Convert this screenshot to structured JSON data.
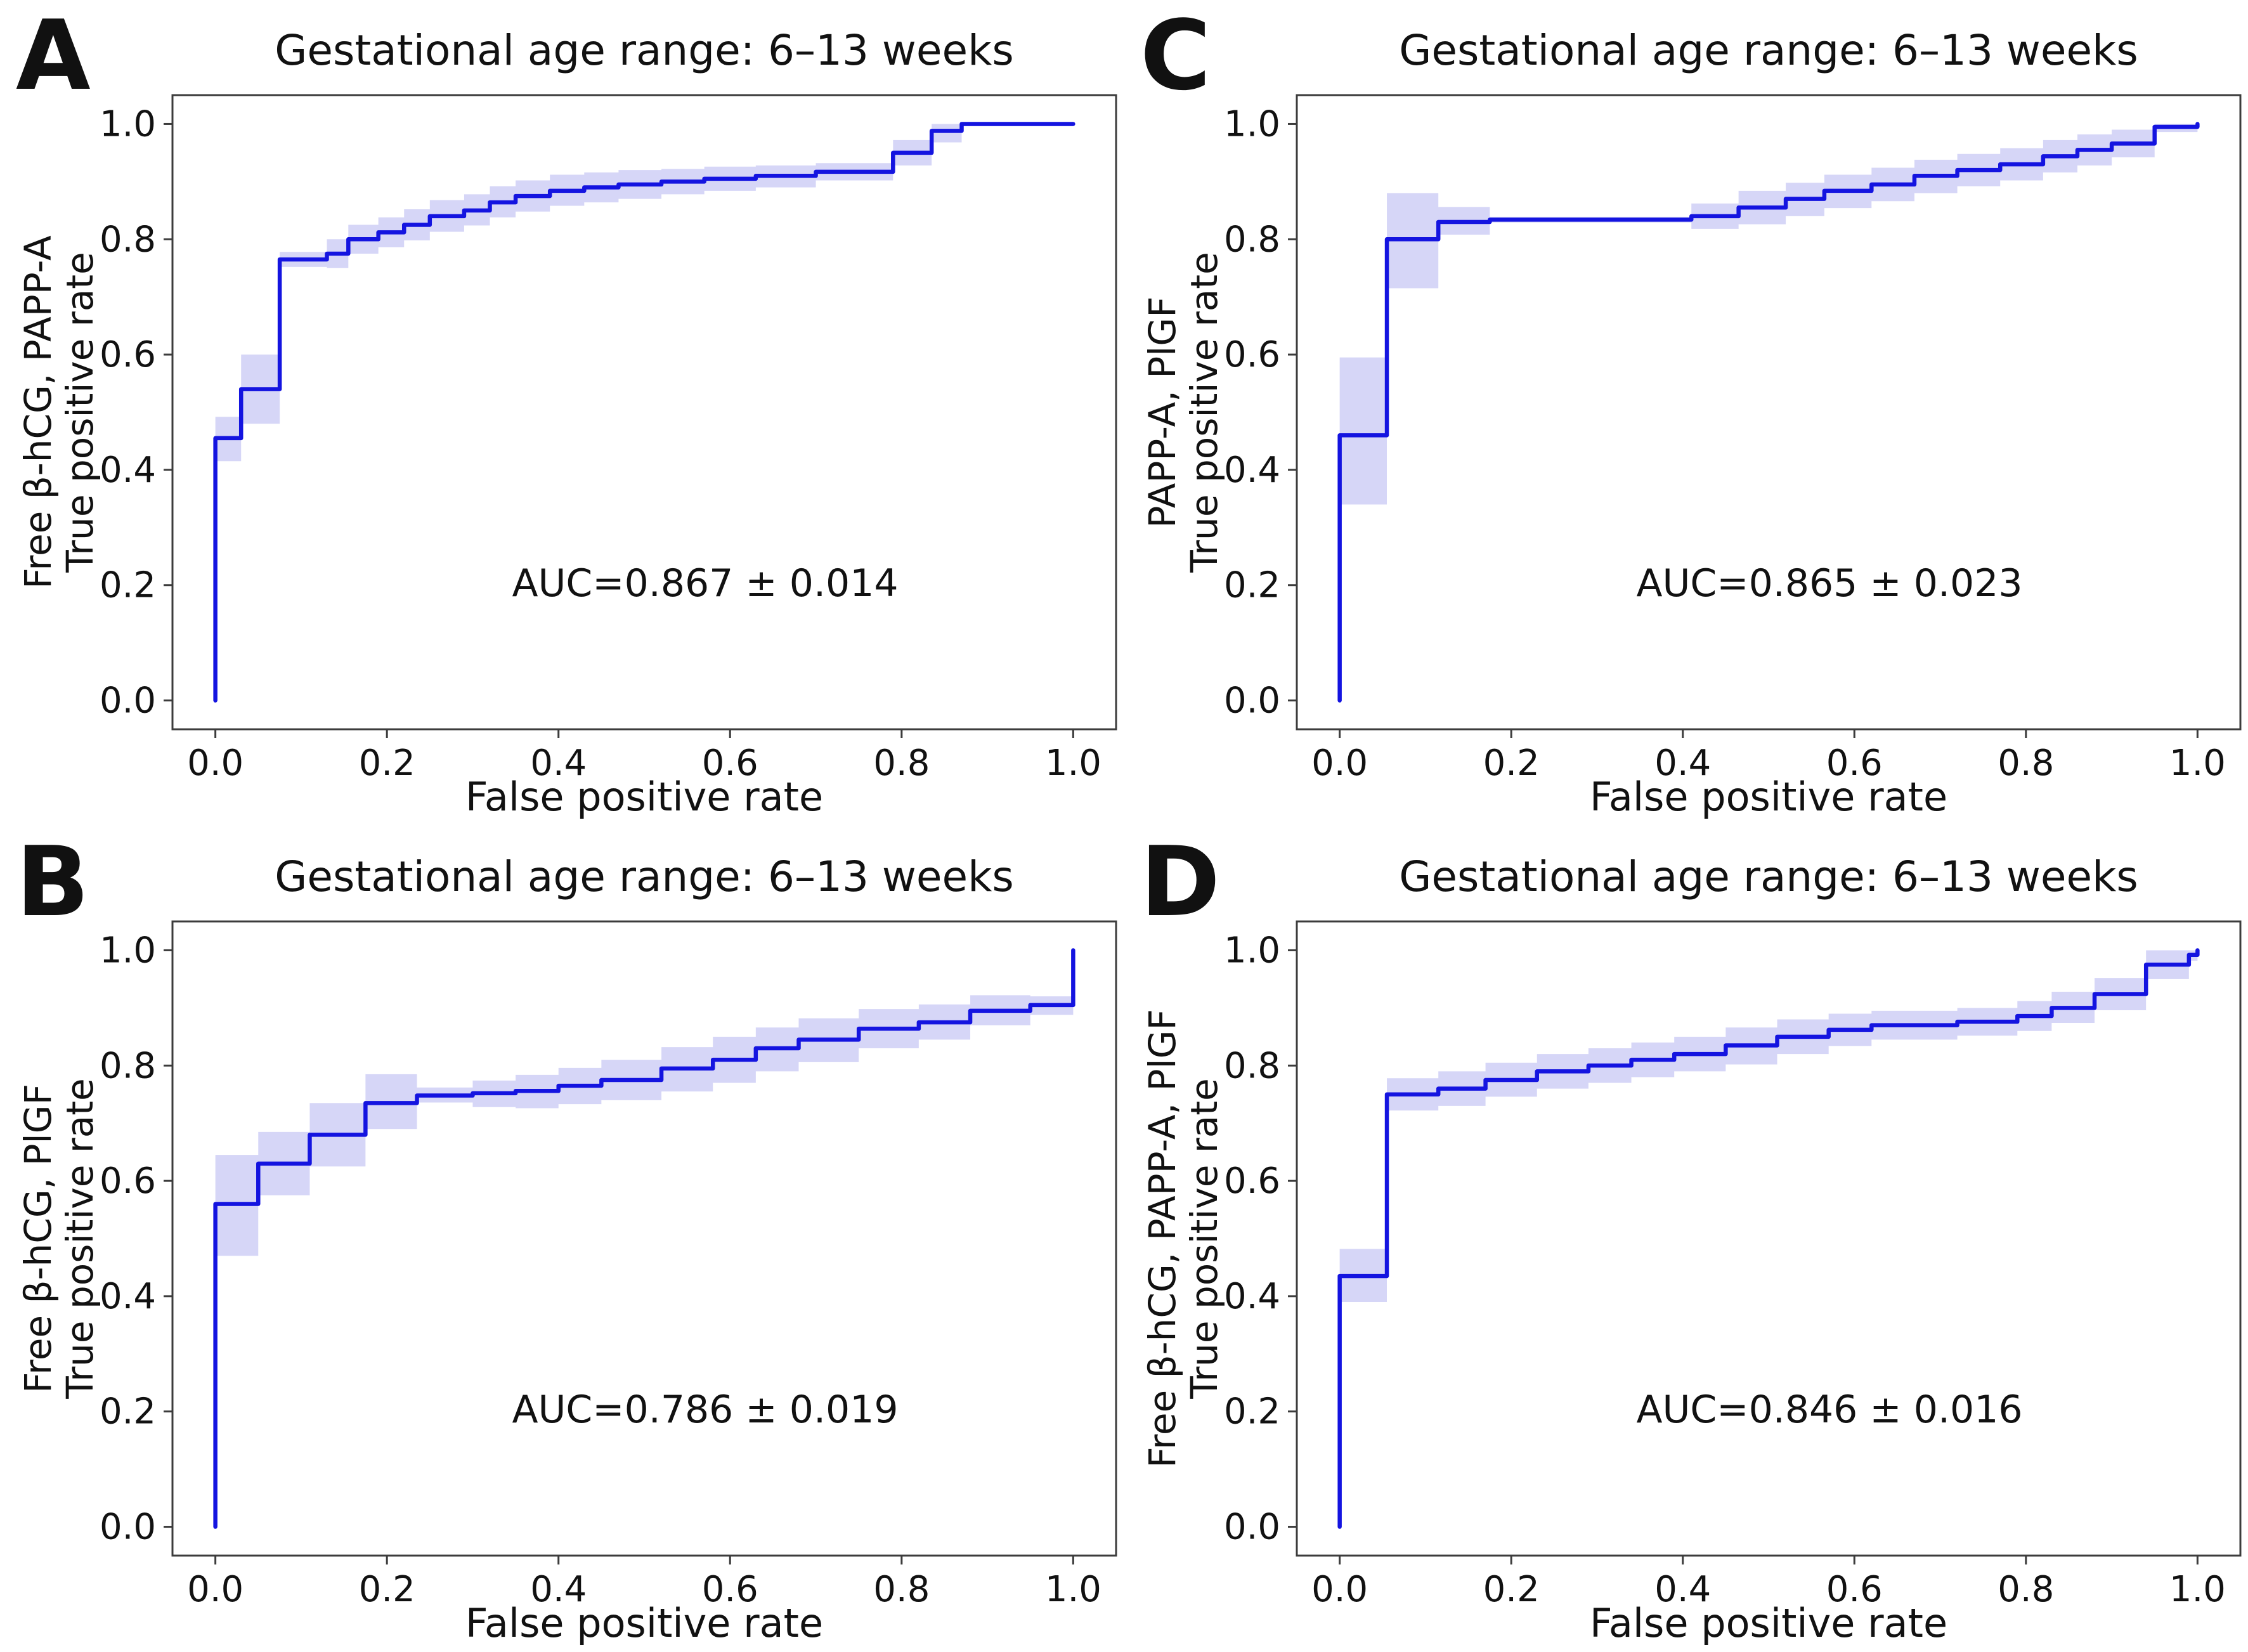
{
  "figure": {
    "background": "#ffffff",
    "line_color": "#1414e0",
    "band_color": "#6b6be4",
    "band_opacity": 0.28,
    "spine_color": "#3c3c3c",
    "text_color": "#111111"
  },
  "axes": {
    "tick_values": [
      0.0,
      0.2,
      0.4,
      0.6,
      0.8,
      1.0
    ],
    "tick_labels": [
      "0.0",
      "0.2",
      "0.4",
      "0.6",
      "0.8",
      "1.0"
    ],
    "xlim": [
      -0.05,
      1.05
    ],
    "ylim": [
      -0.05,
      1.05
    ],
    "grid": false
  },
  "chart_data": {
    "type": "line",
    "subtype": "ROC step curves with shaded confidence bands, 2x2 subplot grid",
    "legend": "none",
    "panels": [
      {
        "letter": "A",
        "grid_position": "top-left",
        "title": "Gestational age range: 6–13 weeks",
        "ylabel_markers": "Free β-hCG, PAPP-A",
        "ylabel_axis": "True positive rate",
        "xlabel": "False positive rate",
        "auc": 0.867,
        "auc_sd": 0.014,
        "auc_label": "AUC=0.867 ± 0.014",
        "steps_note": "each entry = [false_positive_rate, true_positive_rate, band_lower, band_upper]",
        "steps": [
          [
            0.0,
            0.0,
            0.0,
            0.0
          ],
          [
            0.0,
            0.455,
            0.415,
            0.492
          ],
          [
            0.03,
            0.54,
            0.48,
            0.6
          ],
          [
            0.075,
            0.765,
            0.752,
            0.778
          ],
          [
            0.13,
            0.775,
            0.75,
            0.8
          ],
          [
            0.155,
            0.8,
            0.775,
            0.825
          ],
          [
            0.19,
            0.812,
            0.786,
            0.838
          ],
          [
            0.22,
            0.825,
            0.798,
            0.852
          ],
          [
            0.25,
            0.84,
            0.813,
            0.868
          ],
          [
            0.29,
            0.85,
            0.824,
            0.878
          ],
          [
            0.32,
            0.864,
            0.838,
            0.892
          ],
          [
            0.35,
            0.875,
            0.848,
            0.902
          ],
          [
            0.39,
            0.884,
            0.858,
            0.912
          ],
          [
            0.43,
            0.89,
            0.864,
            0.916
          ],
          [
            0.47,
            0.895,
            0.87,
            0.92
          ],
          [
            0.52,
            0.9,
            0.878,
            0.922
          ],
          [
            0.57,
            0.905,
            0.884,
            0.926
          ],
          [
            0.63,
            0.91,
            0.89,
            0.928
          ],
          [
            0.7,
            0.917,
            0.902,
            0.932
          ],
          [
            0.79,
            0.95,
            0.928,
            0.972
          ],
          [
            0.835,
            0.988,
            0.968,
            1.0
          ],
          [
            0.87,
            1.0,
            0.996,
            1.0
          ],
          [
            1.0,
            1.0,
            1.0,
            1.0
          ]
        ]
      },
      {
        "letter": "C",
        "grid_position": "top-right",
        "title": "Gestational age range: 6–13 weeks",
        "ylabel_markers": "PAPP-A, PlGF",
        "ylabel_axis": "True positive rate",
        "xlabel": "False positive rate",
        "auc": 0.865,
        "auc_sd": 0.023,
        "auc_label": "AUC=0.865 ± 0.023",
        "steps_note": "each entry = [false_positive_rate, true_positive_rate, band_lower, band_upper]",
        "steps": [
          [
            0.0,
            0.0,
            0.0,
            0.0
          ],
          [
            0.0,
            0.46,
            0.34,
            0.595
          ],
          [
            0.055,
            0.8,
            0.715,
            0.88
          ],
          [
            0.115,
            0.83,
            0.808,
            0.856
          ],
          [
            0.175,
            0.834,
            0.829,
            0.839
          ],
          [
            0.41,
            0.84,
            0.818,
            0.862
          ],
          [
            0.465,
            0.855,
            0.826,
            0.884
          ],
          [
            0.52,
            0.87,
            0.84,
            0.898
          ],
          [
            0.565,
            0.884,
            0.854,
            0.912
          ],
          [
            0.62,
            0.895,
            0.866,
            0.924
          ],
          [
            0.67,
            0.91,
            0.88,
            0.938
          ],
          [
            0.72,
            0.92,
            0.892,
            0.948
          ],
          [
            0.77,
            0.93,
            0.902,
            0.958
          ],
          [
            0.82,
            0.944,
            0.916,
            0.972
          ],
          [
            0.86,
            0.955,
            0.928,
            0.982
          ],
          [
            0.9,
            0.966,
            0.942,
            0.99
          ],
          [
            0.95,
            0.995,
            0.986,
            1.0
          ],
          [
            1.0,
            1.0,
            1.0,
            1.0
          ]
        ]
      },
      {
        "letter": "B",
        "grid_position": "bottom-left",
        "title": "Gestational age range: 6–13 weeks",
        "ylabel_markers": "Free β-hCG, PlGF",
        "ylabel_axis": "True positive rate",
        "xlabel": "False positive rate",
        "auc": 0.786,
        "auc_sd": 0.019,
        "auc_label": "AUC=0.786 ± 0.019",
        "steps_note": "each entry = [false_positive_rate, true_positive_rate, band_lower, band_upper]",
        "steps": [
          [
            0.0,
            0.0,
            0.0,
            0.0
          ],
          [
            0.0,
            0.56,
            0.47,
            0.645
          ],
          [
            0.05,
            0.63,
            0.575,
            0.685
          ],
          [
            0.11,
            0.68,
            0.625,
            0.735
          ],
          [
            0.175,
            0.735,
            0.69,
            0.785
          ],
          [
            0.235,
            0.748,
            0.736,
            0.762
          ],
          [
            0.3,
            0.752,
            0.728,
            0.774
          ],
          [
            0.35,
            0.756,
            0.726,
            0.784
          ],
          [
            0.4,
            0.765,
            0.733,
            0.796
          ],
          [
            0.45,
            0.775,
            0.74,
            0.81
          ],
          [
            0.52,
            0.795,
            0.755,
            0.832
          ],
          [
            0.58,
            0.81,
            0.77,
            0.85
          ],
          [
            0.63,
            0.83,
            0.79,
            0.866
          ],
          [
            0.68,
            0.845,
            0.806,
            0.882
          ],
          [
            0.75,
            0.864,
            0.83,
            0.898
          ],
          [
            0.82,
            0.875,
            0.845,
            0.906
          ],
          [
            0.88,
            0.895,
            0.87,
            0.922
          ],
          [
            0.95,
            0.905,
            0.888,
            0.92
          ],
          [
            1.0,
            1.0,
            1.0,
            1.0
          ]
        ]
      },
      {
        "letter": "D",
        "grid_position": "bottom-right",
        "title": "Gestational age range: 6–13 weeks",
        "ylabel_markers": "Free β-hCG, PAPP-A, PlGF",
        "ylabel_axis": "True positive rate",
        "xlabel": "False positive rate",
        "auc": 0.846,
        "auc_sd": 0.016,
        "auc_label": "AUC=0.846 ± 0.016",
        "steps_note": "each entry = [false_positive_rate, true_positive_rate, band_lower, band_upper]",
        "steps": [
          [
            0.0,
            0.0,
            0.0,
            0.0
          ],
          [
            0.0,
            0.435,
            0.39,
            0.482
          ],
          [
            0.055,
            0.75,
            0.722,
            0.778
          ],
          [
            0.115,
            0.76,
            0.73,
            0.79
          ],
          [
            0.17,
            0.775,
            0.746,
            0.805
          ],
          [
            0.23,
            0.79,
            0.76,
            0.82
          ],
          [
            0.29,
            0.8,
            0.77,
            0.83
          ],
          [
            0.34,
            0.81,
            0.78,
            0.84
          ],
          [
            0.39,
            0.82,
            0.79,
            0.85
          ],
          [
            0.45,
            0.835,
            0.802,
            0.866
          ],
          [
            0.51,
            0.85,
            0.82,
            0.88
          ],
          [
            0.57,
            0.862,
            0.834,
            0.89
          ],
          [
            0.62,
            0.87,
            0.845,
            0.895
          ],
          [
            0.72,
            0.876,
            0.852,
            0.9
          ],
          [
            0.79,
            0.886,
            0.86,
            0.912
          ],
          [
            0.83,
            0.9,
            0.874,
            0.928
          ],
          [
            0.88,
            0.924,
            0.896,
            0.952
          ],
          [
            0.94,
            0.975,
            0.95,
            1.0
          ],
          [
            0.99,
            0.992,
            0.982,
            1.0
          ],
          [
            1.0,
            1.0,
            1.0,
            1.0
          ]
        ]
      }
    ]
  }
}
